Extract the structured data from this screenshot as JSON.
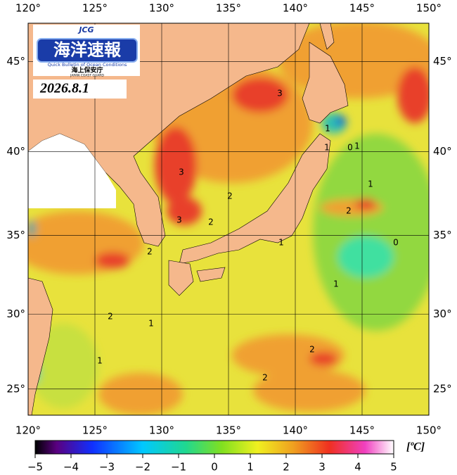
{
  "logo": {
    "badge": "JCG",
    "title": "海洋速報",
    "subtitle": "Quick Bulletin of Ocean Conditions",
    "agency": "海上保安庁",
    "agency_en": "JAPAN COAST GUARD"
  },
  "date": "2026.8.1",
  "map": {
    "lon_range": [
      120,
      150
    ],
    "lat_range": [
      23.2,
      47
    ],
    "xticks": [
      {
        "value": 120,
        "label": "120°"
      },
      {
        "value": 125,
        "label": "125°"
      },
      {
        "value": 130,
        "label": "130°"
      },
      {
        "value": 135,
        "label": "135°"
      },
      {
        "value": 140,
        "label": "140°"
      },
      {
        "value": 145,
        "label": "145°"
      },
      {
        "value": 150,
        "label": "150°"
      }
    ],
    "yticks": [
      {
        "value": 25,
        "label": "25°"
      },
      {
        "value": 30,
        "label": "30°"
      },
      {
        "value": 35,
        "label": "35°"
      },
      {
        "value": 40,
        "label": "40°"
      },
      {
        "value": 45,
        "label": "45°"
      }
    ],
    "contour_labels": [
      3,
      1,
      1,
      0,
      1,
      3,
      2,
      1,
      3,
      2,
      2,
      2,
      1,
      0,
      1,
      2,
      1,
      2,
      1,
      2
    ]
  },
  "colorbar": {
    "range": [
      -5,
      5
    ],
    "ticks": [
      {
        "value": -5,
        "label": "−5"
      },
      {
        "value": -4,
        "label": "−4"
      },
      {
        "value": -3,
        "label": "−3"
      },
      {
        "value": -2,
        "label": "−2"
      },
      {
        "value": -1,
        "label": "−1"
      },
      0,
      1,
      2,
      3,
      4,
      5
    ],
    "unit": "[ºC]"
  }
}
